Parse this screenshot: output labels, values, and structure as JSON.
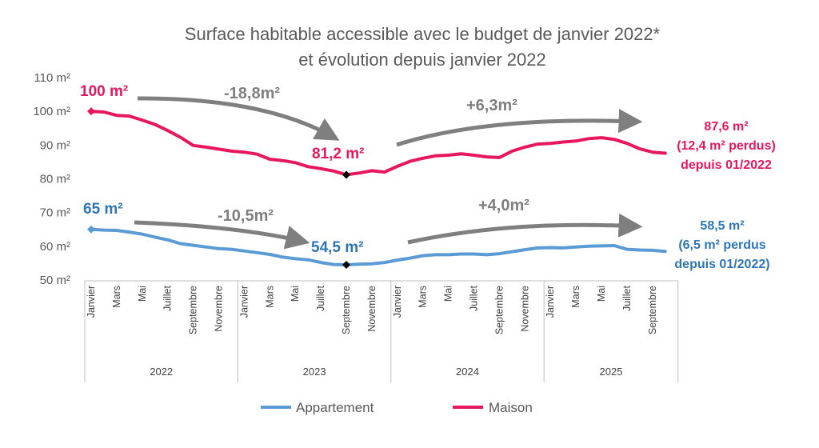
{
  "colors": {
    "appartement": "#5B9BD5",
    "maison": "#E8175D",
    "appartement_text": "#2E75B6",
    "arrow": "#7F7F7F",
    "axis": "#BFBFBF",
    "marker": "#000000"
  },
  "chart_data": {
    "type": "line",
    "title": [
      "Surface habitable accessible avec le budget de janvier 2022*",
      "et évolution depuis janvier 2022"
    ],
    "ylim": [
      50,
      110
    ],
    "yticks": [
      "50 m²",
      "60 m²",
      "70 m²",
      "80 m²",
      "90 m²",
      "100 m²",
      "110 m²"
    ],
    "ytick_values": [
      50,
      60,
      70,
      80,
      90,
      100,
      110
    ],
    "x": [
      "2022-01",
      "2022-02",
      "2022-03",
      "2022-04",
      "2022-05",
      "2022-06",
      "2022-07",
      "2022-08",
      "2022-09",
      "2022-10",
      "2022-11",
      "2022-12",
      "2023-01",
      "2023-02",
      "2023-03",
      "2023-04",
      "2023-05",
      "2023-06",
      "2023-07",
      "2023-08",
      "2023-09",
      "2023-10",
      "2023-11",
      "2023-12",
      "2024-01",
      "2024-02",
      "2024-03",
      "2024-04",
      "2024-05",
      "2024-06",
      "2024-07",
      "2024-08",
      "2024-09",
      "2024-10",
      "2024-11",
      "2024-12",
      "2025-01",
      "2025-02",
      "2025-03",
      "2025-04",
      "2025-05",
      "2025-06",
      "2025-07",
      "2025-08",
      "2025-09",
      "2025-10"
    ],
    "xtick_labels": [
      "Janvier",
      "",
      "Mars",
      "",
      "Mai",
      "",
      "Juillet",
      "",
      "Septembre",
      "",
      "Novembre",
      "",
      "Janvier",
      "",
      "Mars",
      "",
      "Mai",
      "",
      "Juillet",
      "",
      "Septembre",
      "",
      "Novembre",
      "",
      "Janvier",
      "",
      "Mars",
      "",
      "Mai",
      "",
      "Juillet",
      "",
      "Septembre",
      "",
      "Novembre",
      "",
      "Janvier",
      "",
      "Mars",
      "",
      "Mai",
      "",
      "Juillet",
      "",
      "Septembre",
      ""
    ],
    "years": [
      "2022",
      "2023",
      "2024",
      "2025"
    ],
    "series": [
      {
        "name": "Appartement",
        "values": [
          65,
          64.8,
          64.7,
          64.2,
          63.6,
          62.7,
          61.9,
          60.8,
          60.3,
          59.8,
          59.3,
          59.1,
          58.6,
          58.1,
          57.6,
          56.8,
          56.3,
          56,
          55.2,
          54.6,
          54.5,
          54.7,
          54.8,
          55.2,
          55.9,
          56.5,
          57.2,
          57.5,
          57.5,
          57.7,
          57.7,
          57.5,
          57.8,
          58.4,
          59,
          59.5,
          59.6,
          59.5,
          59.8,
          60,
          60.1,
          60.2,
          59.1,
          58.9,
          58.8,
          58.5
        ]
      },
      {
        "name": "Maison",
        "values": [
          100,
          99.8,
          98.8,
          98.6,
          97.4,
          96.1,
          94.3,
          92.3,
          89.9,
          89.4,
          88.8,
          88.2,
          87.9,
          87.3,
          85.8,
          85.4,
          84.8,
          83.6,
          83,
          82.3,
          81.2,
          81.7,
          82.4,
          82,
          83.7,
          85.2,
          86.1,
          86.8,
          87,
          87.4,
          87,
          86.5,
          86.3,
          88.2,
          89.4,
          90.3,
          90.5,
          90.9,
          91.2,
          91.9,
          92.2,
          91.7,
          90.5,
          88.9,
          87.9,
          87.6
        ]
      }
    ],
    "legend": [
      "Appartement",
      "Maison"
    ],
    "legend_position": "bottom",
    "annotations": {
      "maison_start": "100 m²",
      "maison_drop": "-18,8m²",
      "maison_min": "81,2 m²",
      "maison_rise": "+6,3m²",
      "maison_end": [
        "87,6 m²",
        "(12,4 m² perdus)",
        "depuis 01/2022"
      ],
      "appart_start": "65 m²",
      "appart_drop": "-10,5m²",
      "appart_min": "54,5 m²",
      "appart_rise": "+4,0m²",
      "appart_end": [
        "58,5 m²",
        "(6,5 m² perdus",
        "depuis 01/2022)"
      ]
    }
  }
}
